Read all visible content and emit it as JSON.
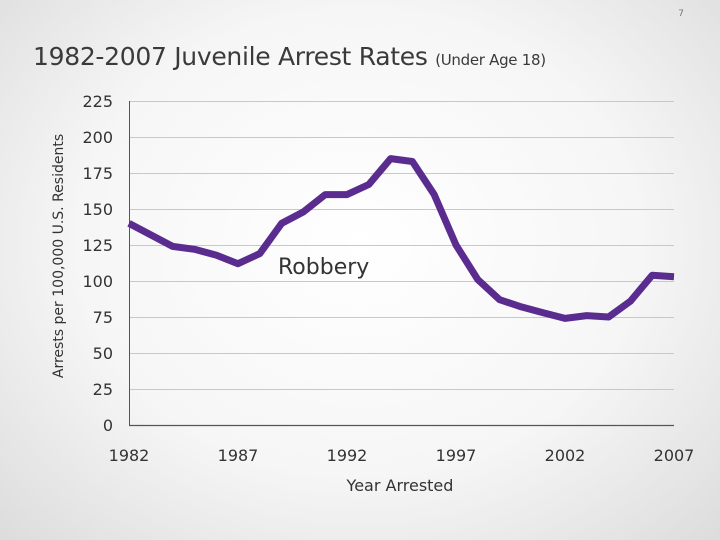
{
  "slide": {
    "number": "7"
  },
  "chart_data": {
    "type": "line",
    "title": "1982-2007 Juvenile Arrest Rates",
    "subtitle": "(Under Age 18)",
    "xlabel": "Year Arrested",
    "ylabel": "Arrests per 100,000 U.S. Residents",
    "xlim": [
      1982,
      2007
    ],
    "ylim": [
      0,
      225
    ],
    "y_ticks": [
      0,
      25,
      50,
      75,
      100,
      125,
      150,
      175,
      200,
      225
    ],
    "x_ticks": [
      1982,
      1987,
      1992,
      1997,
      2002,
      2007
    ],
    "grid": true,
    "series": [
      {
        "name": "Robbery",
        "color": "#5b2c8f",
        "x": [
          1982,
          1983,
          1984,
          1985,
          1986,
          1987,
          1988,
          1989,
          1990,
          1991,
          1992,
          1993,
          1994,
          1995,
          1996,
          1997,
          1998,
          1999,
          2000,
          2001,
          2002,
          2003,
          2004,
          2005,
          2006,
          2007
        ],
        "y": [
          140,
          132,
          124,
          122,
          118,
          112,
          119,
          140,
          148,
          160,
          160,
          167,
          185,
          183,
          160,
          125,
          101,
          87,
          82,
          78,
          74,
          76,
          75,
          86,
          104,
          103
        ]
      }
    ]
  }
}
